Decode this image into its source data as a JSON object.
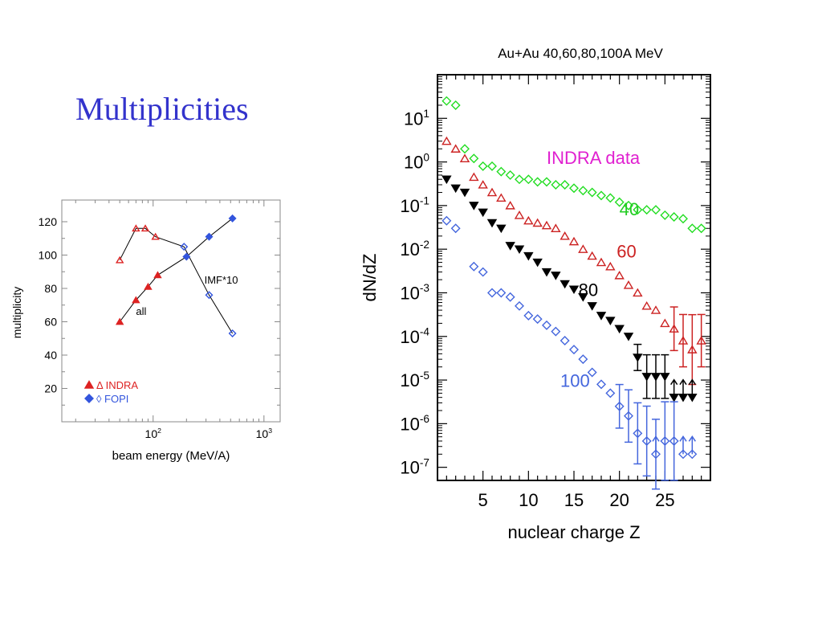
{
  "slide": {
    "title": "Multiplicities"
  },
  "chart_data": [
    {
      "type": "scatter",
      "title": "",
      "xlabel": "beam energy (MeV/A)",
      "ylabel": "multiplicity",
      "xscale": "log",
      "xlim": [
        15,
        1400
      ],
      "ylim": [
        0,
        133
      ],
      "xticks": [
        {
          "value": 100,
          "base": "10",
          "exp": "2"
        },
        {
          "value": 1000,
          "base": "10",
          "exp": "3"
        }
      ],
      "yticks": [
        20,
        40,
        60,
        80,
        100,
        120
      ],
      "legend": [
        {
          "label": "Δ INDRA",
          "color": "#dd2222",
          "marker": "triangle"
        },
        {
          "label": "◊ FOPI",
          "color": "#3355dd",
          "marker": "diamond"
        }
      ],
      "annotations": [
        {
          "text": "all",
          "x": 70,
          "y": 64
        },
        {
          "text": "IMF*10",
          "x": 290,
          "y": 83
        }
      ],
      "series": [
        {
          "name": "all INDRA",
          "color": "#dd2222",
          "marker": "triangle-filled",
          "line": true,
          "x": [
            50,
            70,
            90,
            110
          ],
          "y": [
            60,
            73,
            81,
            88
          ]
        },
        {
          "name": "all FOPI",
          "color": "#3355dd",
          "marker": "diamond-filled",
          "line": true,
          "x": [
            200,
            320,
            520
          ],
          "y": [
            99,
            111,
            122
          ]
        },
        {
          "name": "IMF*10 INDRA",
          "color": "#dd2222",
          "marker": "triangle-open",
          "line": true,
          "x": [
            50,
            70,
            85,
            105
          ],
          "y": [
            97,
            116,
            116,
            111
          ]
        },
        {
          "name": "IMF*10 FOPI",
          "color": "#3355dd",
          "marker": "diamond-open",
          "line": true,
          "x": [
            190,
            320,
            520
          ],
          "y": [
            105,
            76,
            53
          ]
        }
      ],
      "connect": [
        {
          "x": [
            50,
            70,
            90,
            110,
            200,
            320,
            520
          ],
          "y": [
            60,
            73,
            81,
            88,
            99,
            111,
            122
          ]
        },
        {
          "x": [
            50,
            70,
            85,
            105,
            190,
            320,
            520
          ],
          "y": [
            97,
            116,
            116,
            111,
            105,
            76,
            53
          ]
        }
      ]
    },
    {
      "type": "scatter",
      "title": "Au+Au 40,60,80,100A MeV",
      "xlabel": "nuclear charge Z",
      "ylabel": "dN/dZ",
      "yscale": "log",
      "xlim": [
        0,
        30
      ],
      "ylim": [
        5e-08,
        100
      ],
      "xticks": [
        5,
        10,
        15,
        20,
        25
      ],
      "yticks": [
        {
          "value": 10,
          "base": "10",
          "exp": "1"
        },
        {
          "value": 1,
          "base": "10",
          "exp": "0"
        },
        {
          "value": 0.1,
          "base": "10",
          "exp": "-1"
        },
        {
          "value": 0.01,
          "base": "10",
          "exp": "-2"
        },
        {
          "value": 0.001,
          "base": "10",
          "exp": "-3"
        },
        {
          "value": 0.0001,
          "base": "10",
          "exp": "-4"
        },
        {
          "value": 1e-05,
          "base": "10",
          "exp": "-5"
        },
        {
          "value": 1e-06,
          "base": "10",
          "exp": "-6"
        },
        {
          "value": 1e-07,
          "base": "10",
          "exp": "-7"
        }
      ],
      "annotations": [
        {
          "text": "INDRA data",
          "color": "#e020d0",
          "x": 12,
          "y": 0.9
        },
        {
          "text": "40",
          "color": "#22cc22",
          "x": 20,
          "y": 0.06
        },
        {
          "text": "60",
          "color": "#cc2222",
          "x": 19.7,
          "y": 0.0065
        },
        {
          "text": "80",
          "color": "#000000",
          "x": 15.5,
          "y": 0.00085
        },
        {
          "text": "100",
          "color": "#4466dd",
          "x": 13.5,
          "y": 7e-06
        }
      ],
      "series": [
        {
          "name": "40",
          "color": "#22dd22",
          "marker": "diamond-open",
          "x": [
            1,
            2,
            3,
            4,
            5,
            6,
            7,
            8,
            9,
            10,
            11,
            12,
            13,
            14,
            15,
            16,
            17,
            18,
            19,
            20,
            21,
            22,
            23,
            24,
            25,
            26,
            27,
            28,
            29
          ],
          "y": [
            25,
            20,
            2,
            1.2,
            0.8,
            0.8,
            0.6,
            0.5,
            0.4,
            0.4,
            0.35,
            0.35,
            0.3,
            0.3,
            0.25,
            0.22,
            0.2,
            0.17,
            0.15,
            0.12,
            0.1,
            0.08,
            0.08,
            0.08,
            0.06,
            0.055,
            0.05,
            0.03,
            0.03
          ]
        },
        {
          "name": "60",
          "color": "#cc2222",
          "marker": "triangle-open",
          "x": [
            1,
            2,
            3,
            4,
            5,
            6,
            7,
            8,
            9,
            10,
            11,
            12,
            13,
            14,
            15,
            16,
            17,
            18,
            19,
            20,
            21,
            22,
            23,
            24,
            25,
            26,
            27,
            28,
            29
          ],
          "y": [
            3,
            2,
            1.2,
            0.45,
            0.3,
            0.2,
            0.15,
            0.1,
            0.06,
            0.045,
            0.04,
            0.035,
            0.03,
            0.02,
            0.015,
            0.01,
            0.007,
            0.005,
            0.004,
            0.0025,
            0.0015,
            0.001,
            0.0005,
            0.0004,
            0.0002,
            0.00015,
            8e-05,
            5e-05,
            8e-05
          ],
          "err": [
            0,
            0,
            0,
            0,
            0,
            0,
            0,
            0,
            0,
            0,
            0,
            0,
            0,
            0,
            0,
            0,
            0,
            0,
            0,
            0,
            0,
            0,
            0,
            0,
            0,
            0.5,
            0.6,
            0.8,
            0.6
          ]
        },
        {
          "name": "80",
          "color": "#000000",
          "marker": "triangle-down-filled",
          "x": [
            1,
            2,
            3,
            4,
            5,
            6,
            7,
            8,
            9,
            10,
            11,
            12,
            13,
            14,
            15,
            16,
            17,
            18,
            19,
            20,
            21,
            22,
            23,
            24,
            25,
            26,
            27,
            28
          ],
          "y": [
            0.4,
            0.25,
            0.2,
            0.1,
            0.07,
            0.04,
            0.03,
            0.012,
            0.01,
            0.007,
            0.005,
            0.003,
            0.0025,
            0.0016,
            0.0012,
            0.0008,
            0.0005,
            0.0003,
            0.00023,
            0.00015,
            0.0001,
            3.3e-05,
            1.2e-05,
            1.2e-05,
            1.2e-05,
            4e-06,
            4e-06,
            4e-06
          ],
          "err": [
            0,
            0,
            0,
            0,
            0,
            0,
            0,
            0,
            0,
            0,
            0,
            0,
            0,
            0,
            0,
            0,
            0,
            0,
            0,
            0,
            0,
            0.3,
            0.5,
            0.5,
            0.5,
            0,
            0,
            0
          ],
          "limit": [
            0,
            0,
            0,
            0,
            0,
            0,
            0,
            0,
            0,
            0,
            0,
            0,
            0,
            0,
            0,
            0,
            0,
            0,
            0,
            0,
            0,
            0,
            0,
            0,
            0,
            1,
            1,
            1
          ]
        },
        {
          "name": "100",
          "color": "#4466dd",
          "marker": "diamond-open",
          "x": [
            1,
            2,
            3,
            4,
            5,
            6,
            7,
            8,
            9,
            10,
            11,
            12,
            13,
            14,
            15,
            16,
            17,
            18,
            19,
            20,
            21,
            22,
            23,
            24,
            25,
            26,
            27,
            28
          ],
          "y": [
            0.045,
            0.03,
            null,
            0.004,
            0.003,
            0.001,
            0.001,
            0.0008,
            0.0005,
            0.0003,
            0.00025,
            0.00018,
            0.00013,
            8e-05,
            5e-05,
            3e-05,
            1.5e-05,
            8e-06,
            5e-06,
            2.5e-06,
            1.5e-06,
            6e-07,
            4e-07,
            2e-07,
            4e-07,
            4e-07,
            2e-07,
            2e-07
          ],
          "err": [
            0,
            0,
            0,
            0,
            0,
            0,
            0,
            0,
            0,
            0,
            0,
            0,
            0,
            0,
            0,
            0,
            0,
            0,
            0,
            0.5,
            0.6,
            0.7,
            0.8,
            0.8,
            0.9,
            0.9,
            0,
            0
          ],
          "limit": [
            0,
            0,
            0,
            0,
            0,
            0,
            0,
            0,
            0,
            0,
            0,
            0,
            0,
            0,
            0,
            0,
            0,
            0,
            0,
            0,
            0,
            0,
            0,
            1,
            0,
            0,
            1,
            1
          ]
        }
      ]
    }
  ]
}
